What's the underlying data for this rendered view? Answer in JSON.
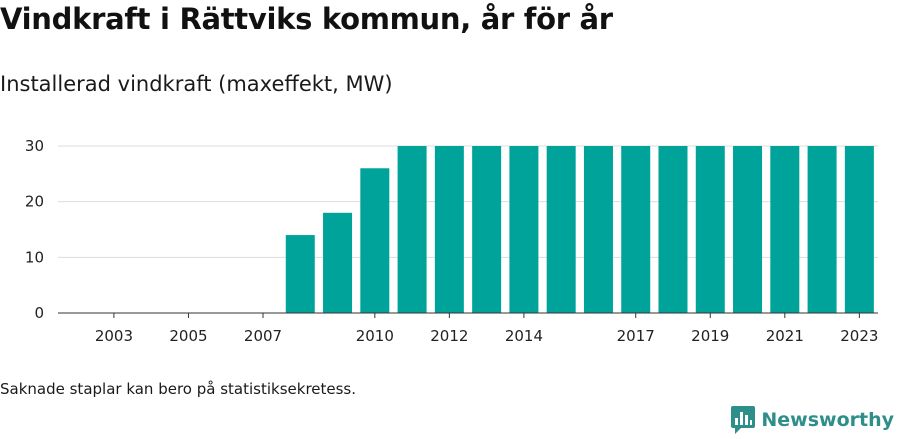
{
  "title": "Vindkraft i Rättviks kommun, år för år",
  "subtitle": "Installerad vindkraft (maxeffekt, MW)",
  "footnote": "Saknade staplar kan bero på statistiksekretess.",
  "brand": {
    "name": "Newsworthy",
    "icon": "newsworthy-logo-icon",
    "color": "#2e8f8a"
  },
  "chart_data": {
    "type": "bar",
    "categories": [
      "2002",
      "2003",
      "2004",
      "2005",
      "2006",
      "2007",
      "2008",
      "2009",
      "2010",
      "2011",
      "2012",
      "2013",
      "2014",
      "2015",
      "2016",
      "2017",
      "2018",
      "2019",
      "2020",
      "2021",
      "2022",
      "2023"
    ],
    "values": [
      0,
      0,
      0,
      0,
      0,
      0,
      14,
      18,
      26,
      30,
      30,
      30,
      30,
      30,
      30,
      30,
      30,
      30,
      30,
      30,
      30,
      30
    ],
    "x_tick_labels": [
      "2003",
      "2005",
      "2007",
      "2010",
      "2012",
      "2014",
      "2017",
      "2019",
      "2021",
      "2023"
    ],
    "y_ticks": [
      0,
      10,
      20,
      30
    ],
    "ylim": [
      0,
      30
    ],
    "bar_color": "#00a39a",
    "grid": true,
    "xlabel": "",
    "ylabel": ""
  }
}
